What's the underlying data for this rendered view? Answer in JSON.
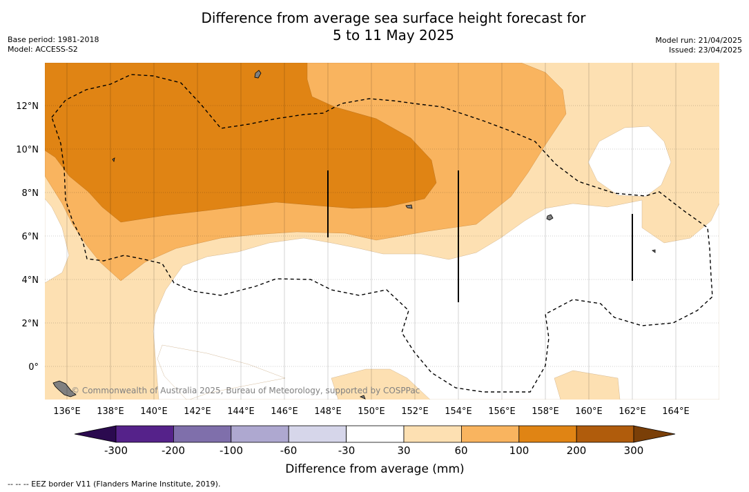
{
  "title": {
    "line1": "Difference from average sea surface height forecast for",
    "line2": "5 to 11 May 2025"
  },
  "meta": {
    "base_period": "Base period: 1981-2018",
    "model": "Model: ACCESS-S2",
    "model_run": "Model run: 21/04/2025",
    "issued": "Issued: 23/04/2025"
  },
  "map": {
    "lon_labels": [
      "136°E",
      "138°E",
      "140°E",
      "142°E",
      "144°E",
      "146°E",
      "148°E",
      "150°E",
      "152°E",
      "154°E",
      "156°E",
      "158°E",
      "160°E",
      "162°E",
      "164°E"
    ],
    "lat_labels": [
      "12°N",
      "10°N",
      "8°N",
      "6°N",
      "4°N",
      "2°N",
      "0°"
    ],
    "watermark": "© Commonwealth of Australia 2025, Bureau of Meteorology, supported by COSPPac"
  },
  "colorbar": {
    "title": "Difference from average (mm)",
    "tick_labels": [
      "-300",
      "-200",
      "-100",
      "-60",
      "-30",
      "30",
      "60",
      "100",
      "200",
      "300"
    ],
    "colors": [
      "#2b0a4f",
      "#55228a",
      "#7f6fab",
      "#aea8d0",
      "#d6d6ea",
      "#ffffff",
      "#fde0b2",
      "#f9b45f",
      "#e08414",
      "#b05c0c",
      "#7a3f08"
    ]
  },
  "footnote": "-- -- -- EEZ border V11 (Flanders Marine Institute, 2019)."
}
